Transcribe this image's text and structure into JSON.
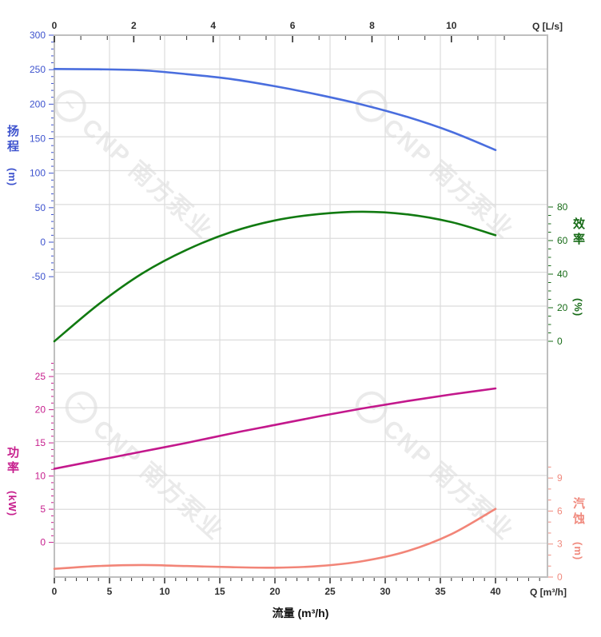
{
  "watermark": {
    "text": "CNP 南方泵业"
  },
  "colors": {
    "grid": "#DCDCDC",
    "border": "#BFBFBF",
    "axis_dark": "#2E2E2E"
  },
  "axes": {
    "x_top": {
      "unit_label": "Q [L/s]",
      "major_ticks": [
        0,
        2,
        4,
        6,
        8,
        10
      ],
      "color": "#2E2E2E"
    },
    "x_bottom": {
      "title": "流量 (m³/h)",
      "unit_label": "Q [m³/h]",
      "major_ticks": [
        0,
        5,
        10,
        15,
        20,
        25,
        30,
        35,
        40
      ],
      "minor_step": 1,
      "color": "#2E2E2E"
    },
    "head": {
      "title": "扬程",
      "unit": "(m)",
      "color": "#3E53CE",
      "major_ticks": [
        300,
        250,
        200,
        150,
        100,
        50,
        0,
        -50
      ],
      "minor_step": 10
    },
    "efficiency": {
      "title": "效率",
      "unit": "(%)",
      "color": "#176B17",
      "major_ticks": [
        80,
        60,
        40,
        20,
        0
      ],
      "minor_step": 5
    },
    "power": {
      "title": "功率",
      "unit": "(kW)",
      "color": "#C7208E",
      "major_ticks": [
        25,
        20,
        15,
        10,
        5,
        0
      ],
      "minor_step": 1
    },
    "npsh": {
      "title": "汽蚀",
      "unit": "(m)",
      "color": "#F08A7E",
      "major_ticks": [
        9,
        6,
        3,
        0
      ],
      "minor_step": 1
    }
  },
  "chart_data": [
    {
      "type": "line",
      "title": "head and efficiency vs flow (top subplot)",
      "xlabel": "流量 (m³/h)",
      "xlim": [
        0,
        44.7
      ],
      "x": [
        0,
        4,
        8,
        12,
        16,
        20,
        24,
        28,
        32,
        36,
        40
      ],
      "grid": true,
      "series": [
        {
          "name": "扬程 (head)",
          "y_axis": "head",
          "color": "#4A6EDE",
          "ylim": [
            -50,
            300
          ],
          "values": [
            251,
            250.5,
            249,
            243.5,
            236.5,
            226,
            213.5,
            199,
            181.5,
            160,
            133.5
          ]
        },
        {
          "name": "效率 (efficiency)",
          "y_axis": "efficiency",
          "color": "#117A11",
          "ylim": [
            0,
            80
          ],
          "values": [
            0,
            22,
            40.5,
            54.5,
            65,
            72,
            75.8,
            77.2,
            75.6,
            71,
            63.2
          ]
        }
      ]
    },
    {
      "type": "line",
      "title": "power and NPSH vs flow (bottom subplot)",
      "xlabel": "流量 (m³/h)",
      "xlim": [
        0,
        44.7
      ],
      "x": [
        0,
        4,
        8,
        12,
        16,
        20,
        24,
        28,
        32,
        36,
        40
      ],
      "grid": true,
      "series": [
        {
          "name": "功率 (power)",
          "y_axis": "power",
          "color": "#C3188C",
          "ylim": [
            0,
            25
          ],
          "values": [
            11.1,
            12.4,
            13.7,
            15.0,
            16.4,
            17.7,
            19.0,
            20.2,
            21.3,
            22.3,
            23.2
          ]
        },
        {
          "name": "汽蚀 (NPSH)",
          "y_axis": "npsh",
          "color": "#F28578",
          "ylim": [
            0,
            9
          ],
          "values": [
            0.75,
            1.0,
            1.1,
            1.0,
            0.9,
            0.85,
            1.0,
            1.45,
            2.35,
            3.9,
            6.2
          ]
        }
      ]
    }
  ]
}
